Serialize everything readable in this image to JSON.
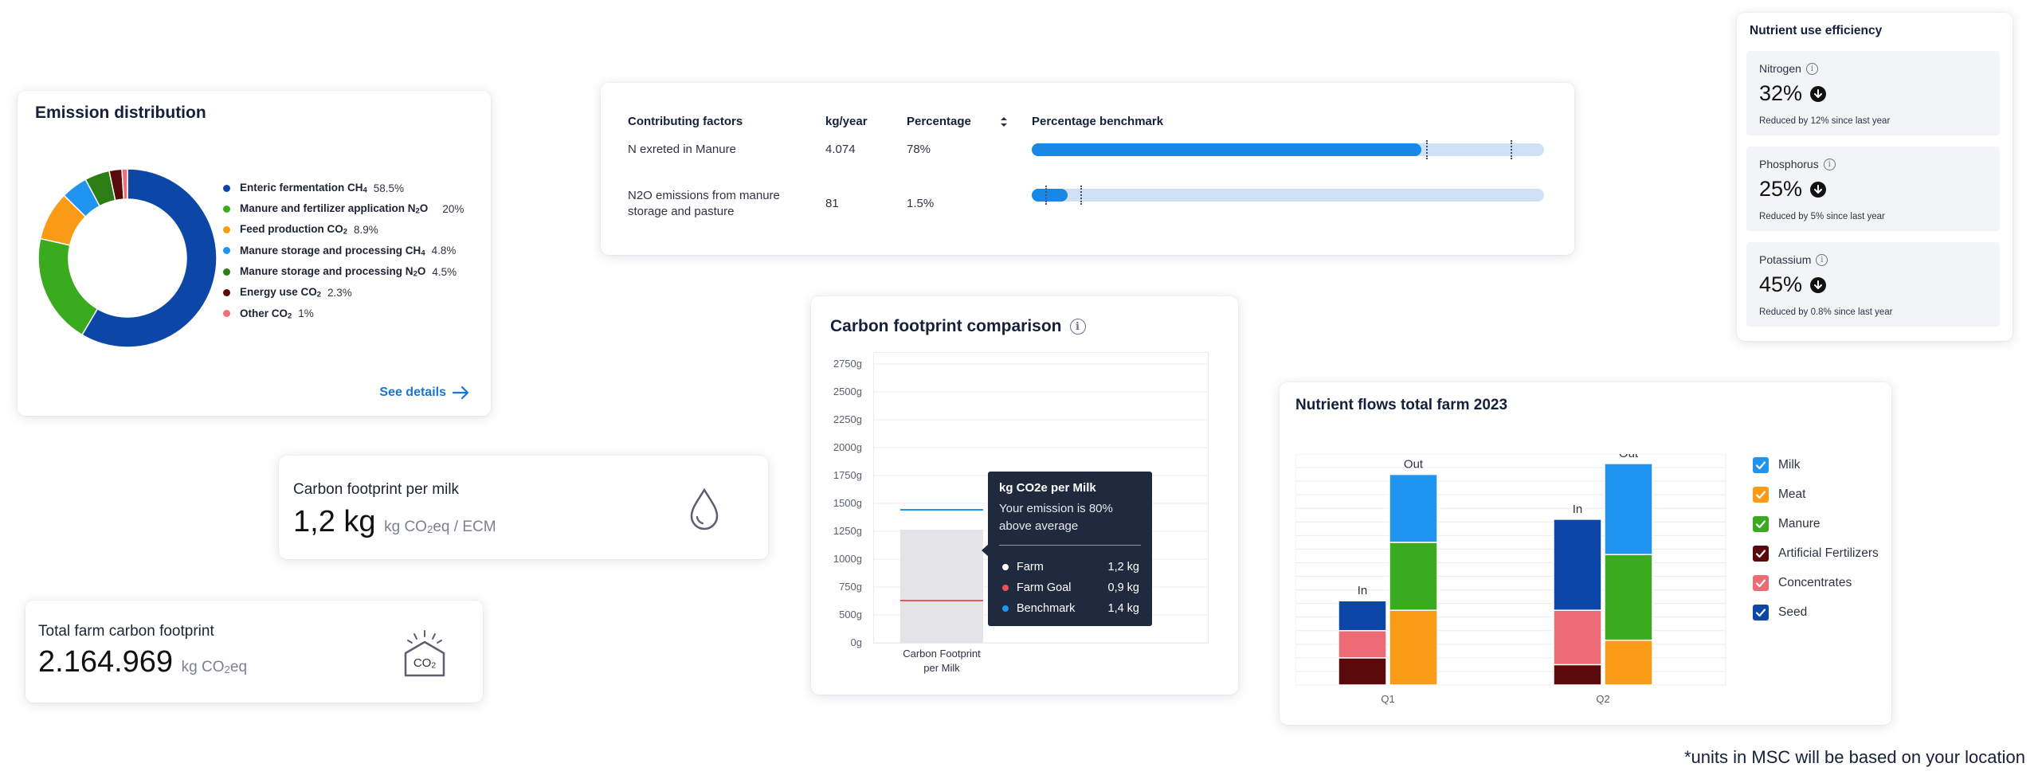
{
  "emission": {
    "title": "Emission distribution",
    "items": [
      {
        "label": "Enteric fermentation CH",
        "sub": "4",
        "value": "58.5%",
        "pct": 58.5,
        "color": "#0c47a8"
      },
      {
        "label": "Manure and fertilizer application N",
        "sub": "2",
        "suffix": "O",
        "value": "20%",
        "pct": 20,
        "color": "#3aaa1e"
      },
      {
        "label": "Feed production CO",
        "sub": "2",
        "value": "8.9%",
        "pct": 8.9,
        "color": "#f99b14"
      },
      {
        "label": "Manure storage and processing CH",
        "sub": "4",
        "value": "4.8%",
        "pct": 4.8,
        "color": "#1f94f0"
      },
      {
        "label": "Manure storage and processing N",
        "sub": "2",
        "suffix": "O",
        "value": "4.5%",
        "pct": 4.5,
        "color": "#2c7d14"
      },
      {
        "label": "Energy use CO",
        "sub": "2",
        "value": "2.3%",
        "pct": 2.3,
        "color": "#5a0a0a"
      },
      {
        "label": "Other CO",
        "sub": "2",
        "value": "1%",
        "pct": 1,
        "color": "#f07078"
      }
    ],
    "see_details": "See details"
  },
  "factors": {
    "headers": {
      "factor": "Contributing factors",
      "kg": "kg/year",
      "pct": "Percentage",
      "bench": "Percentage benchmark"
    },
    "rows": [
      {
        "factor": "N exreted in Manure",
        "kg": "4.074",
        "pct": "78%",
        "fill": 0.76,
        "markers": [
          0.77,
          0.935
        ]
      },
      {
        "factor": "N2O emissions from manure storage and pasture",
        "kg": "81",
        "pct": "1.5%",
        "fill": 0.07,
        "markers": [
          0.027,
          0.095
        ]
      }
    ]
  },
  "milk": {
    "label": "Carbon footprint per milk",
    "value": "1,2 kg",
    "unit_pre": "kg CO",
    "unit_sub": "2",
    "unit_post": "eq / ECM"
  },
  "total": {
    "label": "Total farm carbon footprint",
    "value": "2.164.969",
    "unit_pre": "kg CO",
    "unit_sub": "2",
    "unit_post": "eq",
    "icon_text": "CO",
    "icon_sub": "2"
  },
  "comparison": {
    "title": "Carbon footprint comparison",
    "y_ticks": [
      "2750g",
      "2500g",
      "2250g",
      "2000g",
      "1750g",
      "1500g",
      "1250g",
      "1000g",
      "750g",
      "500g",
      "0g"
    ],
    "x_label_1": "Carbon Footprint",
    "x_label_2": "per Milk",
    "tooltip": {
      "title": "kg CO2e per Milk",
      "desc": "Your emission is 80% above average",
      "rows": [
        {
          "label": "Farm",
          "value": "1,2 kg",
          "color": "#ffffff"
        },
        {
          "label": "Farm Goal",
          "value": "0,9 kg",
          "color": "#f0505a"
        },
        {
          "label": "Benchmark",
          "value": "1,4 kg",
          "color": "#1f94f0"
        }
      ]
    }
  },
  "chart_data": {
    "type": "bar",
    "title": "Nutrient flows total farm 2023",
    "categories": [
      "Q1",
      "Q2"
    ],
    "stack_labels": [
      "In",
      "Out"
    ],
    "ylim": [
      0,
      17
    ],
    "series": [
      {
        "name": "Milk",
        "stack": "Out",
        "color": "#1f94f0",
        "values": [
          5,
          6.7
        ]
      },
      {
        "name": "Meat",
        "stack": "Out",
        "color": "#f99b14",
        "values": [
          5.5,
          3.3
        ]
      },
      {
        "name": "Manure",
        "stack": "Out",
        "color": "#3aaa1e",
        "values": [
          5,
          6.3
        ]
      },
      {
        "name": "Artificial Fertilizers",
        "stack": "In",
        "color": "#5a0a0a",
        "values": [
          2,
          1.5
        ]
      },
      {
        "name": "Concentrates",
        "stack": "In",
        "color": "#ee6a74",
        "values": [
          2,
          4
        ]
      },
      {
        "name": "Seed",
        "stack": "In",
        "color": "#0c47a8",
        "values": [
          2.2,
          6.7
        ]
      }
    ],
    "legend": [
      "Milk",
      "Meat",
      "Manure",
      "Artificial Fertilizers",
      "Concentrates",
      "Seed"
    ]
  },
  "nue": {
    "title": "Nutrient use efficiency",
    "items": [
      {
        "name": "Nitrogen",
        "pct": "32%",
        "note": "Reduced by 12% since last year"
      },
      {
        "name": "Phosphorus",
        "pct": "25%",
        "note": "Reduced by 5% since last year"
      },
      {
        "name": "Potassium",
        "pct": "45%",
        "note": "Reduced by 0.8% since last year"
      }
    ]
  },
  "footnote": "*units in MSC will be based on your location"
}
